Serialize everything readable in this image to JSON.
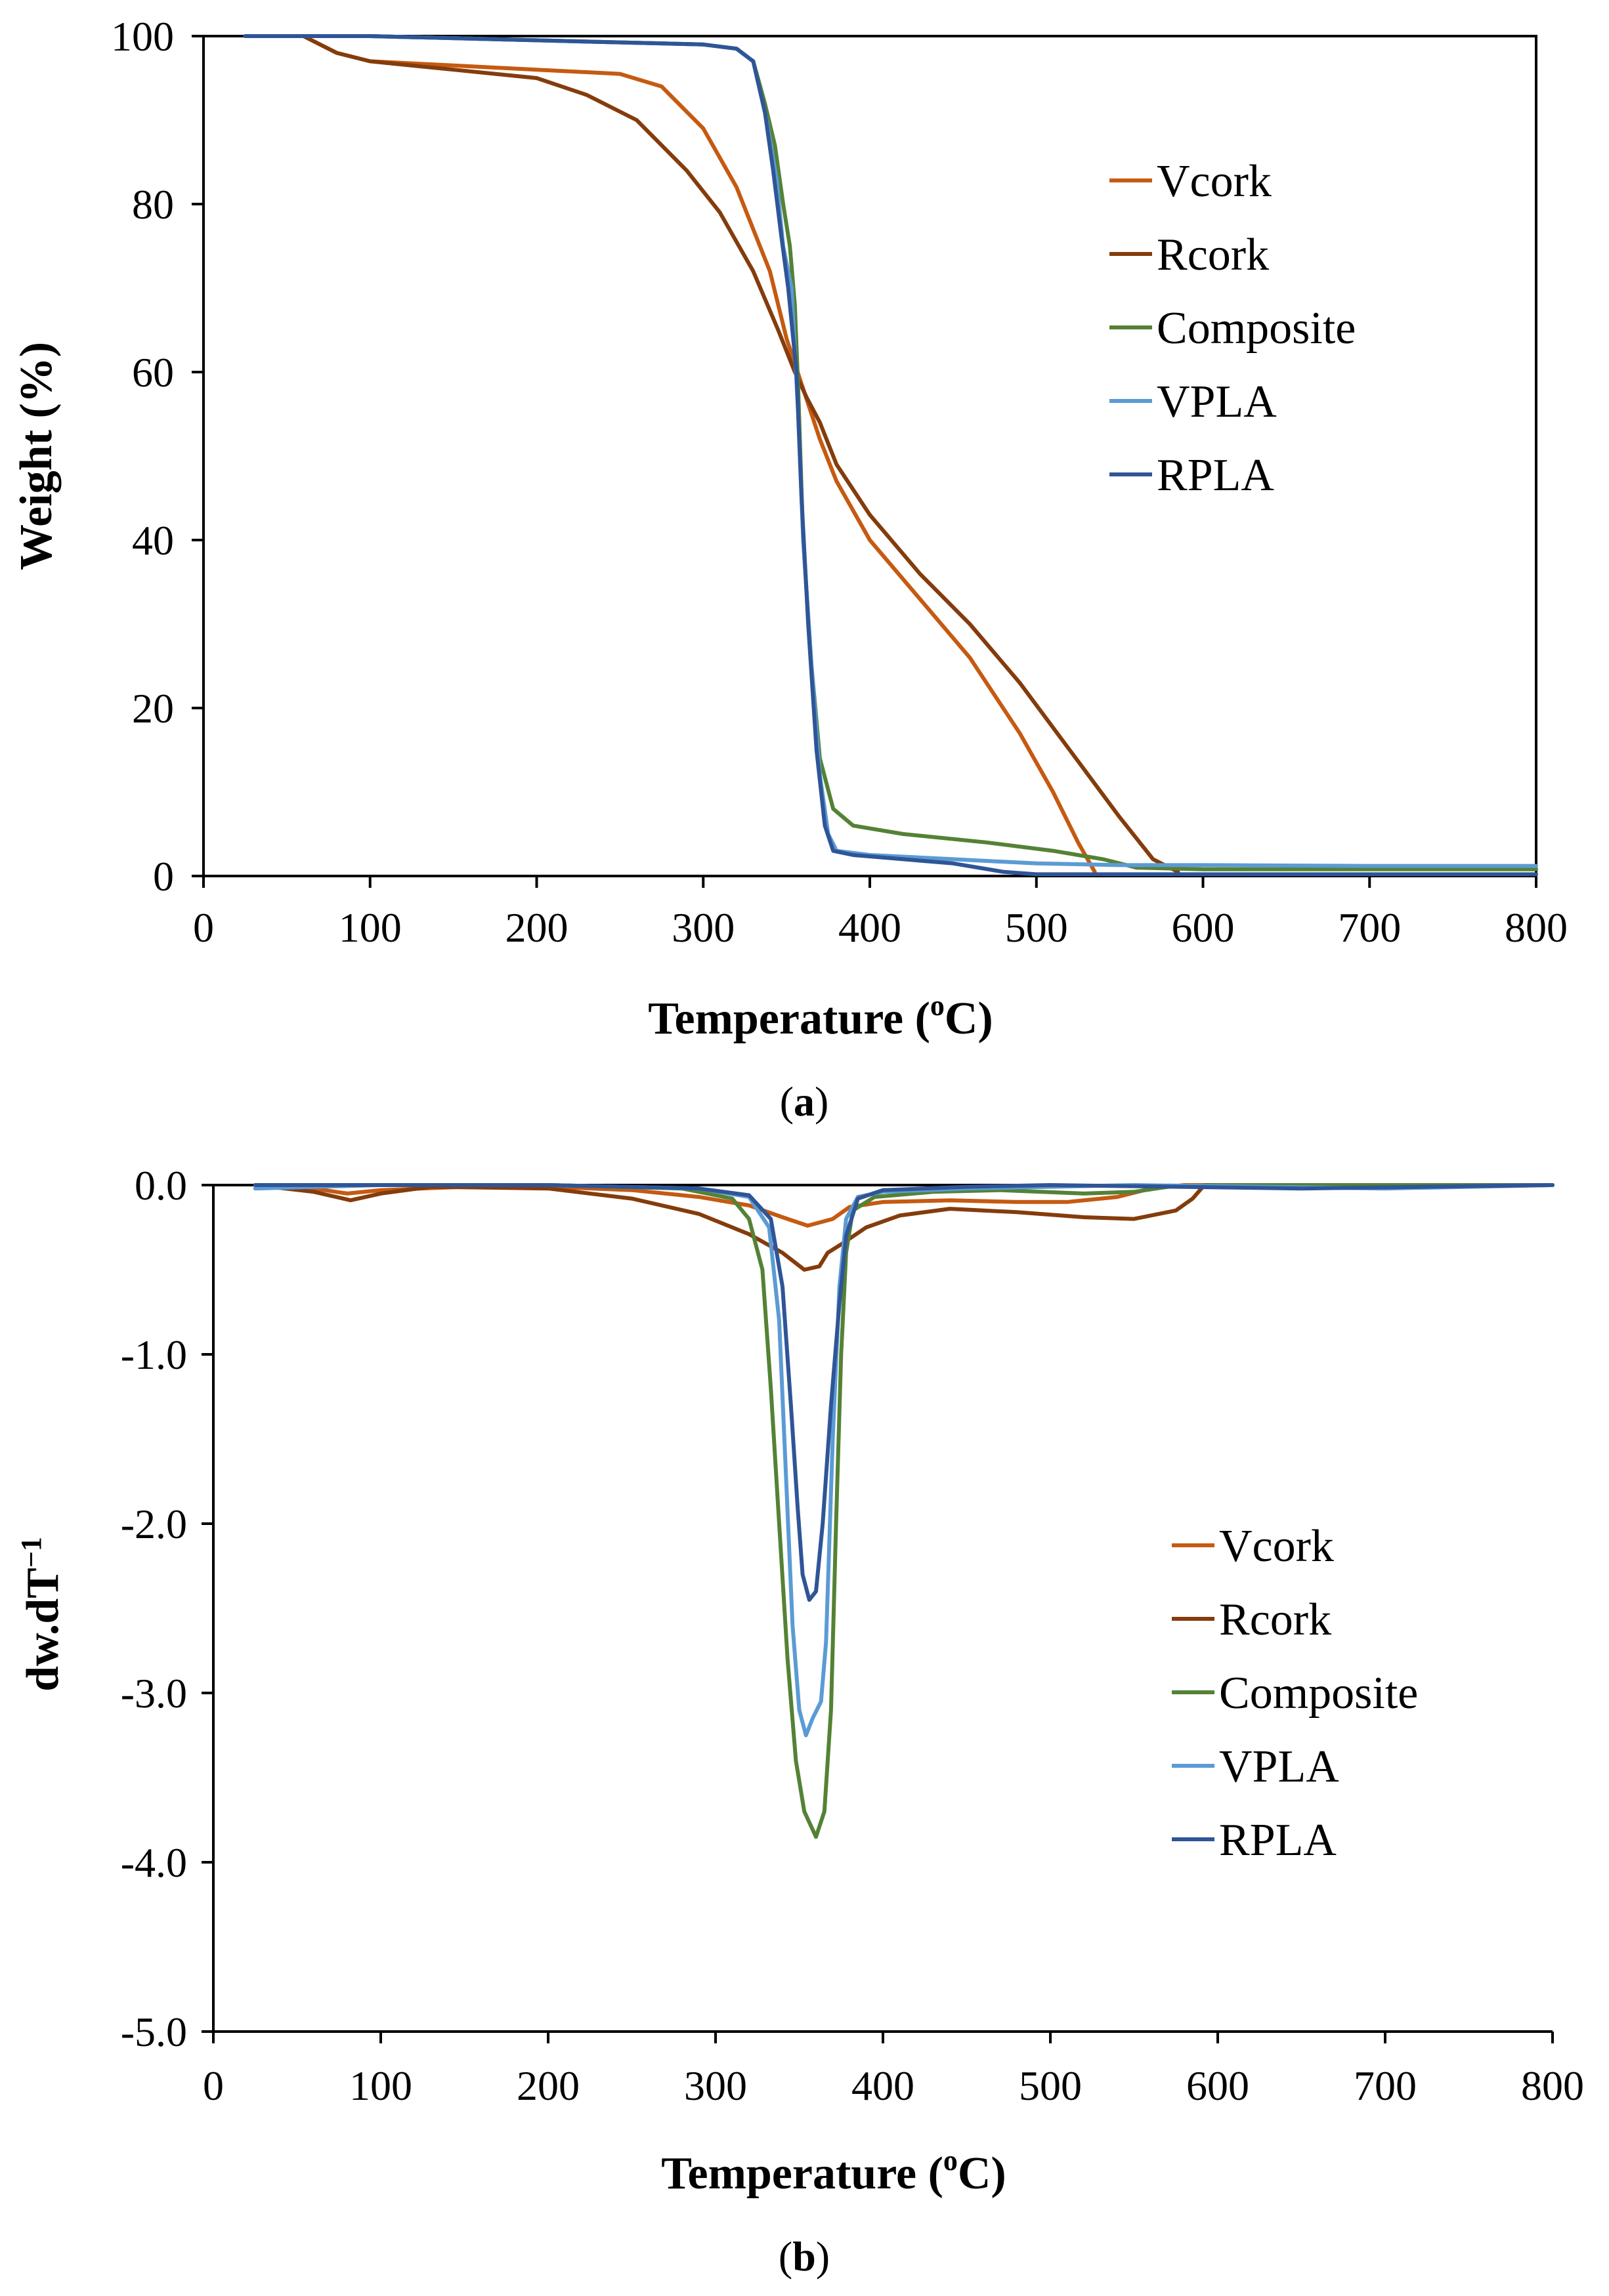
{
  "chart_data": [
    {
      "type": "line",
      "panel": "a",
      "caption": "(a)",
      "caption_letter": "a",
      "xlabel": "Temperature (",
      "xlabel_sup": "o",
      "xlabel_end": "C)",
      "ylabel": "Weight (%)",
      "xlim": [
        0,
        800
      ],
      "ylim": [
        0,
        100
      ],
      "xticks": [
        "0",
        "100",
        "200",
        "300",
        "400",
        "500",
        "600",
        "700",
        "800"
      ],
      "yticks": [
        "0",
        "20",
        "40",
        "60",
        "80",
        "100"
      ],
      "legend": [
        "Vcork",
        "Rcork",
        "Composite",
        "VPLA",
        "RPLA"
      ],
      "legend_position": "top-right",
      "series": [
        {
          "name": "Vcork",
          "color": "#c55a11",
          "points": [
            [
              60,
              100
            ],
            [
              70,
              99
            ],
            [
              80,
              98
            ],
            [
              100,
              97
            ],
            [
              150,
              96.5
            ],
            [
              200,
              96
            ],
            [
              250,
              95.5
            ],
            [
              275,
              94
            ],
            [
              300,
              89
            ],
            [
              320,
              82
            ],
            [
              340,
              72
            ],
            [
              350,
              64
            ],
            [
              360,
              58
            ],
            [
              370,
              52
            ],
            [
              380,
              47
            ],
            [
              400,
              40
            ],
            [
              430,
              33
            ],
            [
              460,
              26
            ],
            [
              490,
              17
            ],
            [
              510,
              10
            ],
            [
              525,
              4
            ],
            [
              535,
              0.5
            ]
          ]
        },
        {
          "name": "Rcork",
          "color": "#843c0c",
          "points": [
            [
              60,
              100
            ],
            [
              80,
              98
            ],
            [
              100,
              97
            ],
            [
              150,
              96
            ],
            [
              200,
              95
            ],
            [
              230,
              93
            ],
            [
              260,
              90
            ],
            [
              290,
              84
            ],
            [
              310,
              79
            ],
            [
              330,
              72
            ],
            [
              345,
              65
            ],
            [
              355,
              60
            ],
            [
              362,
              57
            ],
            [
              370,
              54
            ],
            [
              380,
              49
            ],
            [
              400,
              43
            ],
            [
              430,
              36
            ],
            [
              460,
              30
            ],
            [
              490,
              23
            ],
            [
              520,
              15
            ],
            [
              550,
              7
            ],
            [
              570,
              2
            ],
            [
              585,
              0.5
            ]
          ]
        },
        {
          "name": "Composite",
          "color": "#548235",
          "points": [
            [
              25,
              100
            ],
            [
              100,
              100
            ],
            [
              200,
              99.5
            ],
            [
              300,
              99
            ],
            [
              320,
              98.5
            ],
            [
              330,
              97
            ],
            [
              337,
              92
            ],
            [
              343,
              87
            ],
            [
              348,
              80
            ],
            [
              352,
              75
            ],
            [
              355,
              68
            ],
            [
              357,
              58
            ],
            [
              360,
              40
            ],
            [
              365,
              25
            ],
            [
              370,
              14
            ],
            [
              378,
              8
            ],
            [
              390,
              6
            ],
            [
              420,
              5
            ],
            [
              470,
              4
            ],
            [
              510,
              3
            ],
            [
              540,
              2
            ],
            [
              560,
              1
            ],
            [
              600,
              0.8
            ],
            [
              800,
              0.8
            ]
          ]
        },
        {
          "name": "VPLA",
          "color": "#5b9bd5",
          "points": [
            [
              25,
              100
            ],
            [
              100,
              100
            ],
            [
              200,
              99.5
            ],
            [
              300,
              99
            ],
            [
              320,
              98.5
            ],
            [
              330,
              97
            ],
            [
              338,
              90
            ],
            [
              344,
              83
            ],
            [
              348,
              75
            ],
            [
              353,
              70
            ],
            [
              357,
              55
            ],
            [
              360,
              40
            ],
            [
              365,
              25
            ],
            [
              370,
              12
            ],
            [
              375,
              5
            ],
            [
              380,
              3
            ],
            [
              400,
              2.5
            ],
            [
              450,
              2
            ],
            [
              500,
              1.5
            ],
            [
              550,
              1.3
            ],
            [
              600,
              1.3
            ],
            [
              700,
              1.2
            ],
            [
              800,
              1.2
            ]
          ]
        },
        {
          "name": "RPLA",
          "color": "#2f5597",
          "points": [
            [
              25,
              100
            ],
            [
              100,
              100
            ],
            [
              200,
              99.5
            ],
            [
              300,
              99
            ],
            [
              320,
              98.5
            ],
            [
              330,
              97
            ],
            [
              337,
              91
            ],
            [
              342,
              84
            ],
            [
              347,
              76
            ],
            [
              351,
              70
            ],
            [
              356,
              60
            ],
            [
              359,
              45
            ],
            [
              363,
              30
            ],
            [
              368,
              15
            ],
            [
              373,
              6
            ],
            [
              378,
              3
            ],
            [
              390,
              2.5
            ],
            [
              420,
              2
            ],
            [
              450,
              1.5
            ],
            [
              480,
              0.5
            ],
            [
              500,
              0.2
            ],
            [
              800,
              0.2
            ]
          ]
        }
      ]
    },
    {
      "type": "line",
      "panel": "b",
      "caption": "(b)",
      "caption_letter": "b",
      "xlabel": "Temperature (",
      "xlabel_sup": "o",
      "xlabel_end": "C)",
      "ylabel": "dw.dT",
      "ylabel_sup": "−1",
      "xlim": [
        0,
        800
      ],
      "ylim": [
        -5,
        0
      ],
      "xticks": [
        "0",
        "100",
        "200",
        "300",
        "400",
        "500",
        "600",
        "700",
        "800"
      ],
      "yticks": [
        "0.0",
        "-1.0",
        "-2.0",
        "-3.0",
        "-4.0",
        "-5.0"
      ],
      "legend": [
        "Vcork",
        "Rcork",
        "Composite",
        "VPLA",
        "RPLA"
      ],
      "legend_position": "right",
      "series": [
        {
          "name": "Vcork",
          "color": "#c55a11",
          "points": [
            [
              25,
              0
            ],
            [
              60,
              -0.02
            ],
            [
              80,
              -0.05
            ],
            [
              100,
              -0.03
            ],
            [
              150,
              -0.01
            ],
            [
              200,
              -0.01
            ],
            [
              250,
              -0.03
            ],
            [
              290,
              -0.07
            ],
            [
              320,
              -0.12
            ],
            [
              340,
              -0.19
            ],
            [
              355,
              -0.24
            ],
            [
              370,
              -0.2
            ],
            [
              380,
              -0.13
            ],
            [
              400,
              -0.1
            ],
            [
              440,
              -0.09
            ],
            [
              480,
              -0.1
            ],
            [
              510,
              -0.1
            ],
            [
              540,
              -0.07
            ],
            [
              560,
              -0.02
            ],
            [
              580,
              0
            ],
            [
              800,
              0
            ]
          ]
        },
        {
          "name": "Rcork",
          "color": "#843c0c",
          "points": [
            [
              25,
              0
            ],
            [
              60,
              -0.04
            ],
            [
              82,
              -0.09
            ],
            [
              100,
              -0.05
            ],
            [
              130,
              -0.01
            ],
            [
              200,
              -0.02
            ],
            [
              250,
              -0.08
            ],
            [
              290,
              -0.17
            ],
            [
              320,
              -0.29
            ],
            [
              340,
              -0.4
            ],
            [
              353,
              -0.5
            ],
            [
              362,
              -0.48
            ],
            [
              367,
              -0.4
            ],
            [
              375,
              -0.35
            ],
            [
              390,
              -0.25
            ],
            [
              410,
              -0.18
            ],
            [
              440,
              -0.14
            ],
            [
              480,
              -0.16
            ],
            [
              520,
              -0.19
            ],
            [
              550,
              -0.2
            ],
            [
              575,
              -0.15
            ],
            [
              585,
              -0.08
            ],
            [
              592,
              0
            ],
            [
              800,
              0
            ]
          ]
        },
        {
          "name": "Composite",
          "color": "#548235",
          "points": [
            [
              25,
              0
            ],
            [
              200,
              0
            ],
            [
              280,
              -0.02
            ],
            [
              310,
              -0.08
            ],
            [
              320,
              -0.2
            ],
            [
              328,
              -0.5
            ],
            [
              333,
              -1.2
            ],
            [
              338,
              -2.0
            ],
            [
              343,
              -2.8
            ],
            [
              348,
              -3.4
            ],
            [
              353,
              -3.7
            ],
            [
              360,
              -3.85
            ],
            [
              365,
              -3.7
            ],
            [
              369,
              -3.1
            ],
            [
              372,
              -2.0
            ],
            [
              375,
              -1.0
            ],
            [
              378,
              -0.4
            ],
            [
              382,
              -0.15
            ],
            [
              395,
              -0.07
            ],
            [
              430,
              -0.04
            ],
            [
              470,
              -0.03
            ],
            [
              520,
              -0.05
            ],
            [
              550,
              -0.04
            ],
            [
              570,
              -0.01
            ],
            [
              600,
              0
            ],
            [
              800,
              0
            ]
          ]
        },
        {
          "name": "VPLA",
          "color": "#5b9bd5",
          "points": [
            [
              25,
              -0.02
            ],
            [
              100,
              0
            ],
            [
              200,
              0
            ],
            [
              290,
              -0.02
            ],
            [
              320,
              -0.07
            ],
            [
              332,
              -0.25
            ],
            [
              338,
              -0.8
            ],
            [
              342,
              -1.7
            ],
            [
              346,
              -2.6
            ],
            [
              350,
              -3.1
            ],
            [
              354,
              -3.25
            ],
            [
              358,
              -3.15
            ],
            [
              363,
              -3.05
            ],
            [
              366,
              -2.7
            ],
            [
              370,
              -1.5
            ],
            [
              374,
              -0.6
            ],
            [
              378,
              -0.2
            ],
            [
              385,
              -0.07
            ],
            [
              400,
              -0.04
            ],
            [
              450,
              -0.02
            ],
            [
              500,
              -0.01
            ],
            [
              550,
              0
            ],
            [
              700,
              -0.02
            ],
            [
              800,
              0
            ]
          ]
        },
        {
          "name": "RPLA",
          "color": "#2f5597",
          "points": [
            [
              25,
              0
            ],
            [
              100,
              0
            ],
            [
              200,
              0
            ],
            [
              290,
              -0.02
            ],
            [
              320,
              -0.06
            ],
            [
              333,
              -0.2
            ],
            [
              340,
              -0.6
            ],
            [
              345,
              -1.3
            ],
            [
              349,
              -1.9
            ],
            [
              352,
              -2.3
            ],
            [
              356,
              -2.45
            ],
            [
              360,
              -2.4
            ],
            [
              364,
              -2.0
            ],
            [
              369,
              -1.3
            ],
            [
              374,
              -0.7
            ],
            [
              378,
              -0.3
            ],
            [
              385,
              -0.08
            ],
            [
              400,
              -0.03
            ],
            [
              450,
              -0.01
            ],
            [
              500,
              0
            ],
            [
              650,
              -0.02
            ],
            [
              800,
              0
            ]
          ]
        }
      ]
    }
  ]
}
